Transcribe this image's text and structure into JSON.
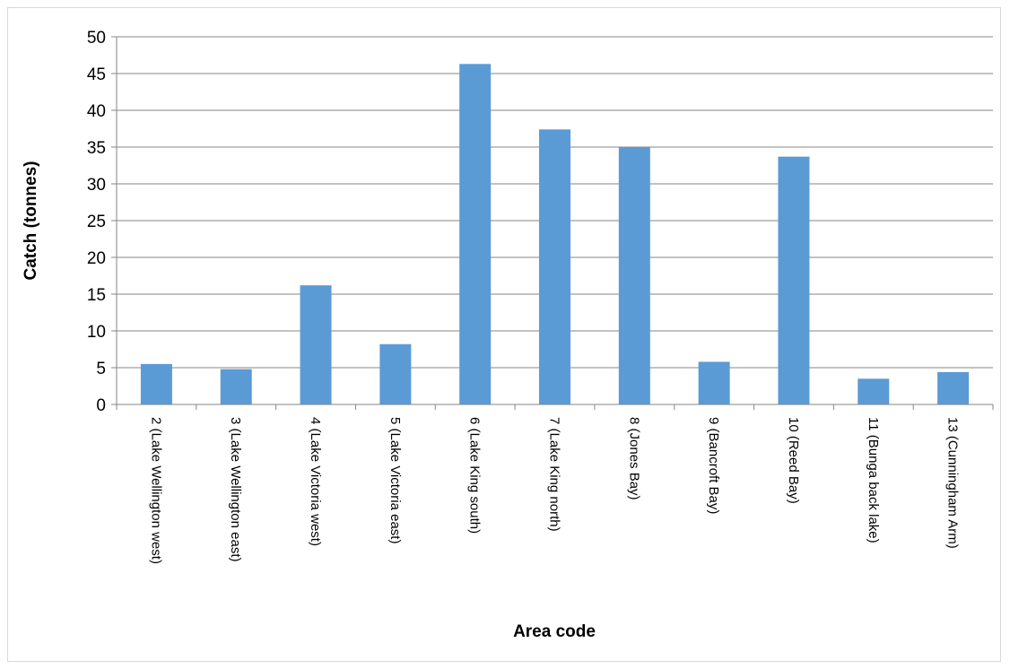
{
  "chart_data": {
    "type": "bar",
    "title": "",
    "xlabel": "Area code",
    "ylabel": "Catch (tonnes)",
    "ylim": [
      0,
      50
    ],
    "yticks": [
      0,
      5,
      10,
      15,
      20,
      25,
      30,
      35,
      40,
      45,
      50
    ],
    "grid": true,
    "legend": "none",
    "bar_color": "#5b9bd5",
    "categories": [
      "2 (Lake Wellington west)",
      "3 (Lake Wellington east)",
      "4 (Lake Victoria west)",
      "5 (Lake Victoria east)",
      "6 (Lake King south)",
      "7 (Lake King north)",
      "8 (Jones Bay)",
      "9 (Bancroft Bay)",
      "10 (Reed Bay)",
      "11 (Bunga back lake)",
      "13 (Cunningham Arm)"
    ],
    "values": [
      5.5,
      4.8,
      16.2,
      8.2,
      46.3,
      37.4,
      35.0,
      5.8,
      33.7,
      3.5,
      4.4
    ]
  }
}
